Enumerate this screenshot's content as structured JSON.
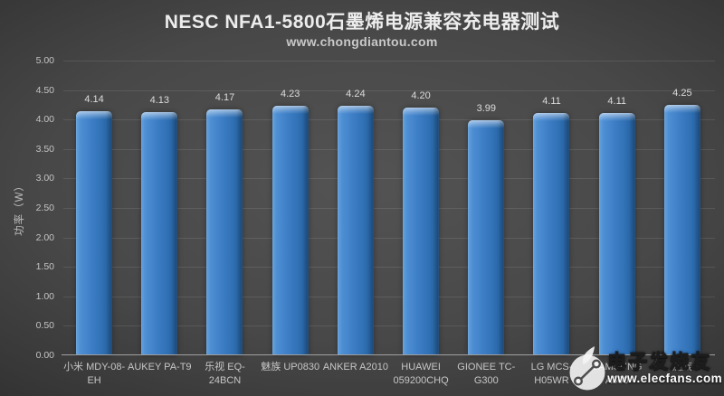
{
  "header": {
    "title": "NESC NFA1-5800石墨烯电源兼容充电器测试",
    "subtitle": "www.chongdiantou.com"
  },
  "chart_data": {
    "type": "bar",
    "title": "NESC NFA1-5800石墨烯电源兼容充电器测试",
    "subtitle": "www.chongdiantou.com",
    "xlabel": "",
    "ylabel": "功率（W）",
    "ylim": [
      0,
      5
    ],
    "ytick_step": 0.5,
    "grid": true,
    "legend_position": "none",
    "bar_color": "#3c7cc3",
    "categories": [
      "小米 MDY-08-EH",
      "AUKEY PA-T9",
      "乐视 EQ-24BCN",
      "魅族 UP0830",
      "ANKER A2010",
      "HUAWEI 059200CHQ",
      "GIONEE TC-G300",
      "LG MCS-H05WR",
      "SAMSUNG A300",
      "魅族"
    ],
    "category_display": [
      "小米 MDY-08-\nEH",
      "AUKEY PA-T9",
      "乐视 EQ-24BCN",
      "魅族 UP0830",
      "ANKER A2010",
      "HUAWEI\n059200CHQ",
      "GIONEE TC-\nG300",
      "LG MCS-\nH05WR",
      "SAMSUNG\nA300",
      "魅族"
    ],
    "values": [
      4.14,
      4.13,
      4.17,
      4.23,
      4.24,
      4.2,
      3.99,
      4.11,
      4.11,
      4.25
    ]
  },
  "watermark": {
    "site_name": "电子发烧友",
    "site_url": "www.elecfans.com",
    "logo_icon": "elecfans-circuit-flame-logo"
  },
  "colors": {
    "background_center": "#4f4f4f",
    "background_edge": "#1a1a1a",
    "bar_blue": "#3c7cc3",
    "gridline": "#565656",
    "axis_line": "#a0a0a0",
    "text_light": "#ededed",
    "text_muted": "#c4c4c4"
  }
}
